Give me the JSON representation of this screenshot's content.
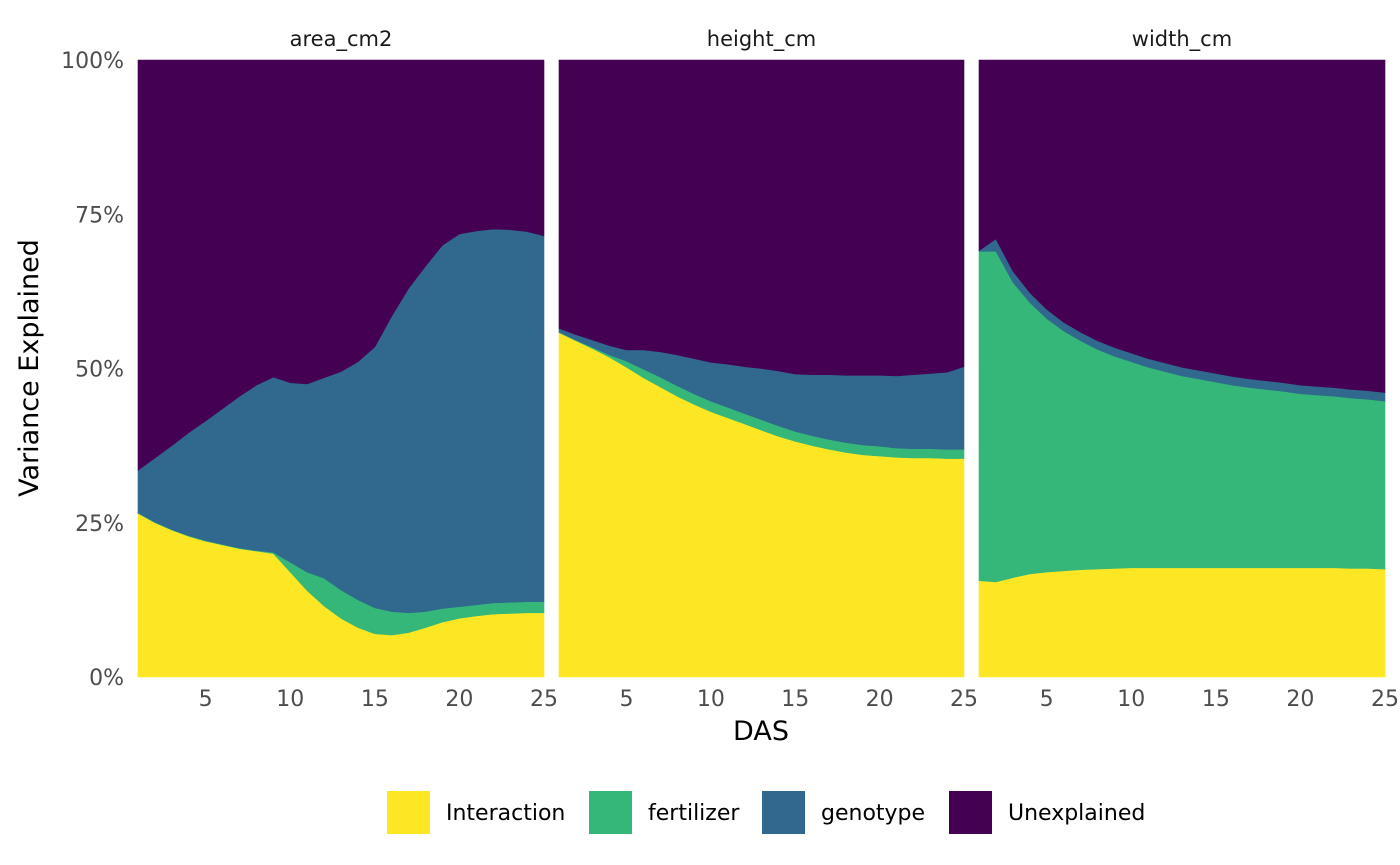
{
  "chart_data": {
    "type": "area",
    "stacked": true,
    "facet_by": "trait",
    "facets": [
      {
        "title": "area_cm2",
        "x": [
          1,
          2,
          3,
          4,
          5,
          6,
          7,
          8,
          9,
          10,
          11,
          12,
          13,
          14,
          15,
          16,
          17,
          18,
          19,
          20,
          21,
          22,
          23,
          24,
          25
        ],
        "series": [
          {
            "name": "Interaction",
            "values": [
              26.5,
              25.0,
              23.8,
              22.8,
              22.0,
              21.4,
              20.8,
              20.4,
              20.0,
              17.0,
              14.0,
              11.5,
              9.5,
              8.0,
              7.0,
              6.8,
              7.2,
              8.0,
              8.9,
              9.5,
              9.9,
              10.2,
              10.3,
              10.4,
              10.4
            ]
          },
          {
            "name": "fertilizer",
            "values": [
              0.1,
              0.1,
              0.1,
              0.1,
              0.1,
              0.1,
              0.1,
              0.1,
              0.2,
              1.6,
              3.0,
              4.5,
              4.6,
              4.5,
              4.2,
              3.8,
              3.2,
              2.6,
              2.2,
              1.9,
              1.8,
              1.8,
              1.8,
              1.8,
              1.8
            ]
          },
          {
            "name": "genotype",
            "values": [
              6.9,
              10.4,
              13.6,
              16.7,
              19.4,
              22.0,
              24.6,
              26.8,
              28.4,
              29.1,
              30.5,
              32.5,
              35.4,
              38.6,
              42.3,
              47.9,
              52.6,
              56.0,
              58.9,
              60.4,
              60.6,
              60.6,
              60.4,
              60.0,
              59.3
            ]
          },
          {
            "name": "Unexplained",
            "values": [
              66.5,
              64.5,
              62.5,
              60.4,
              58.5,
              56.5,
              54.5,
              52.7,
              51.4,
              52.3,
              52.5,
              51.5,
              50.5,
              48.9,
              46.5,
              41.5,
              37.0,
              33.4,
              30.0,
              28.2,
              27.7,
              27.4,
              27.5,
              27.8,
              28.5
            ]
          }
        ]
      },
      {
        "title": "height_cm",
        "x": [
          1,
          2,
          3,
          4,
          5,
          6,
          7,
          8,
          9,
          10,
          11,
          12,
          13,
          14,
          15,
          16,
          17,
          18,
          19,
          20,
          21,
          22,
          23,
          24,
          25
        ],
        "series": [
          {
            "name": "Interaction",
            "values": [
              55.8,
              54.5,
              53.2,
              51.8,
              50.2,
              48.5,
              47.0,
              45.5,
              44.2,
              43.0,
              42.0,
              41.0,
              40.0,
              39.0,
              38.2,
              37.5,
              36.9,
              36.4,
              36.0,
              35.8,
              35.6,
              35.5,
              35.5,
              35.4,
              35.4
            ]
          },
          {
            "name": "fertilizer",
            "values": [
              0.1,
              0.1,
              0.2,
              0.4,
              1.0,
              1.4,
              1.6,
              1.7,
              1.7,
              1.7,
              1.7,
              1.7,
              1.7,
              1.7,
              1.6,
              1.6,
              1.6,
              1.6,
              1.6,
              1.6,
              1.5,
              1.5,
              1.5,
              1.5,
              1.5
            ]
          },
          {
            "name": "genotype",
            "values": [
              0.6,
              0.9,
              1.2,
              1.5,
              1.8,
              3.1,
              4.1,
              5.0,
              5.7,
              6.3,
              7.0,
              7.6,
              8.3,
              8.9,
              9.3,
              9.9,
              10.5,
              10.9,
              11.3,
              11.5,
              11.7,
              12.0,
              12.2,
              12.5,
              13.4
            ]
          },
          {
            "name": "Unexplained",
            "values": [
              43.5,
              44.5,
              45.4,
              46.3,
              47.0,
              47.0,
              47.3,
              47.8,
              48.4,
              49.0,
              49.3,
              49.7,
              50.0,
              50.4,
              50.9,
              51.0,
              51.0,
              51.1,
              51.1,
              51.1,
              51.2,
              51.0,
              50.8,
              50.6,
              49.7
            ]
          }
        ]
      },
      {
        "title": "width_cm",
        "x": [
          1,
          2,
          3,
          4,
          5,
          6,
          7,
          8,
          9,
          10,
          11,
          12,
          13,
          14,
          15,
          16,
          17,
          18,
          19,
          20,
          21,
          22,
          23,
          24,
          25
        ],
        "series": [
          {
            "name": "Interaction",
            "values": [
              15.6,
              15.4,
              16.1,
              16.7,
              17.0,
              17.2,
              17.4,
              17.5,
              17.6,
              17.7,
              17.7,
              17.7,
              17.7,
              17.7,
              17.7,
              17.7,
              17.7,
              17.7,
              17.7,
              17.7,
              17.7,
              17.7,
              17.6,
              17.6,
              17.5
            ]
          },
          {
            "name": "fertilizer",
            "values": [
              53.4,
              53.6,
              47.9,
              44.0,
              41.1,
              38.9,
              37.1,
              35.6,
              34.4,
              33.4,
              32.5,
              31.8,
              31.1,
              30.6,
              30.1,
              29.6,
              29.2,
              28.9,
              28.6,
              28.2,
              28.0,
              27.8,
              27.6,
              27.4,
              27.2
            ]
          },
          {
            "name": "genotype",
            "values": [
              0.1,
              2.0,
              1.8,
              1.6,
              1.5,
              1.4,
              1.4,
              1.4,
              1.4,
              1.4,
              1.4,
              1.4,
              1.4,
              1.4,
              1.4,
              1.4,
              1.4,
              1.4,
              1.4,
              1.4,
              1.4,
              1.4,
              1.4,
              1.4,
              1.4
            ]
          },
          {
            "name": "Unexplained",
            "values": [
              30.9,
              29.0,
              34.2,
              37.7,
              40.4,
              42.5,
              44.1,
              45.5,
              46.6,
              47.5,
              48.4,
              49.1,
              49.8,
              50.3,
              50.8,
              51.3,
              51.7,
              52.0,
              52.3,
              52.7,
              52.9,
              53.1,
              53.4,
              53.6,
              53.9
            ]
          }
        ]
      }
    ],
    "xlabel": "DAS",
    "ylabel": "Variance Explained",
    "xlim": [
      1,
      25
    ],
    "ylim": [
      0,
      1
    ],
    "x_ticks": [
      "5",
      "10",
      "15",
      "20",
      "25"
    ],
    "y_ticks": [
      "0%",
      "25%",
      "50%",
      "75%",
      "100%"
    ],
    "grid": false,
    "legend": {
      "position": "bottom",
      "entries": [
        {
          "name": "Interaction",
          "color": "#FDE725"
        },
        {
          "name": "fertilizer",
          "color": "#35B779"
        },
        {
          "name": "genotype",
          "color": "#31688E"
        },
        {
          "name": "Unexplained",
          "color": "#440154"
        }
      ]
    }
  }
}
